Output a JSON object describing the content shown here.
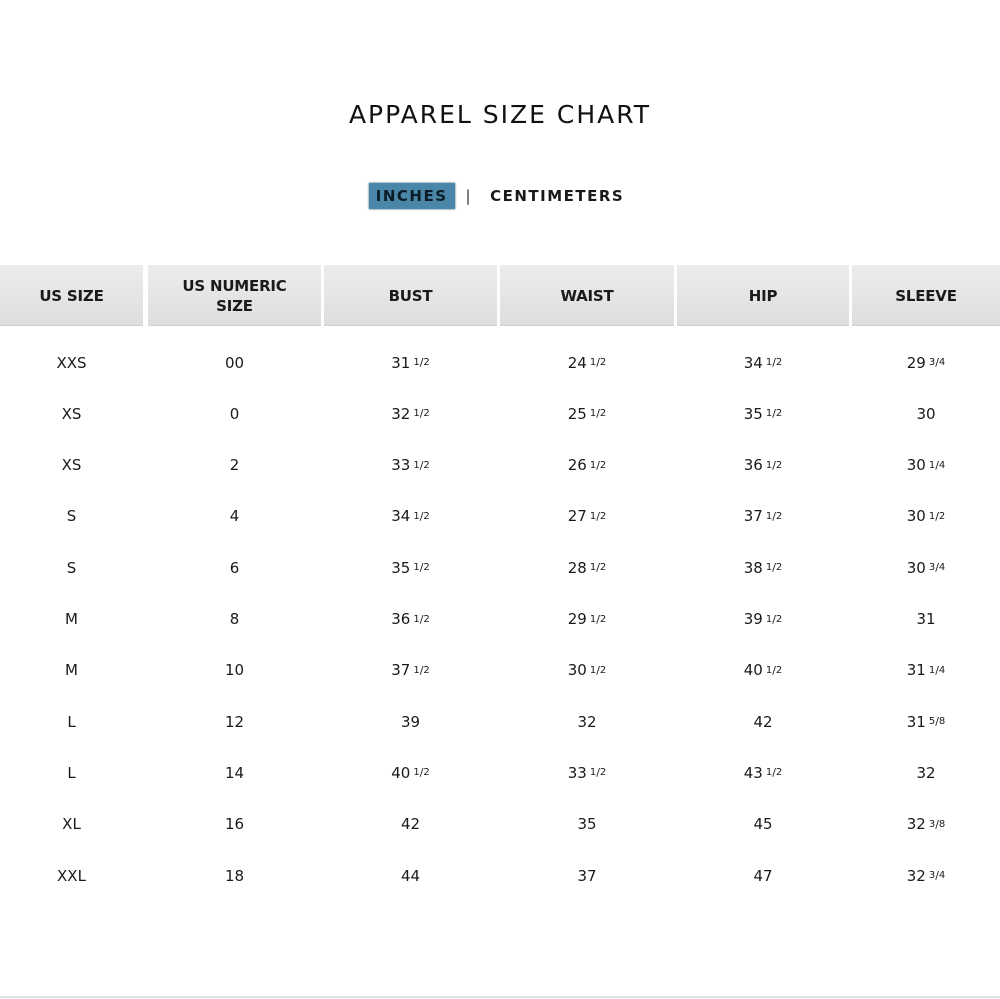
{
  "title": "APPAREL SIZE CHART",
  "units": {
    "active": "INCHES",
    "separator": "|",
    "inactive": "CENTIMETERS"
  },
  "columns": [
    {
      "key": "us_size",
      "label_lines": [
        "US SIZE"
      ]
    },
    {
      "key": "us_numeric",
      "label_lines": [
        "US NUMERIC",
        "SIZE"
      ]
    },
    {
      "key": "bust",
      "label_lines": [
        "BUST"
      ]
    },
    {
      "key": "waist",
      "label_lines": [
        "WAIST"
      ]
    },
    {
      "key": "hip",
      "label_lines": [
        "HIP"
      ]
    },
    {
      "key": "sleeve",
      "label_lines": [
        "SLEEVE"
      ]
    }
  ],
  "rows": [
    [
      "XXS",
      "00",
      "31 1/2",
      "24 1/2",
      "34 1/2",
      "29 3/4"
    ],
    [
      "XS",
      "0",
      "32 1/2",
      "25 1/2",
      "35 1/2",
      "30"
    ],
    [
      "XS",
      "2",
      "33 1/2",
      "26 1/2",
      "36 1/2",
      "30 1/4"
    ],
    [
      "S",
      "4",
      "34 1/2",
      "27 1/2",
      "37 1/2",
      "30 1/2"
    ],
    [
      "S",
      "6",
      "35 1/2",
      "28 1/2",
      "38 1/2",
      "30 3/4"
    ],
    [
      "M",
      "8",
      "36 1/2",
      "29 1/2",
      "39 1/2",
      "31"
    ],
    [
      "M",
      "10",
      "37 1/2",
      "30 1/2",
      "40 1/2",
      "31 1/4"
    ],
    [
      "L",
      "12",
      "39",
      "32",
      "42",
      "31 5/8"
    ],
    [
      "L",
      "14",
      "40 1/2",
      "33 1/2",
      "43 1/2",
      "32"
    ],
    [
      "XL",
      "16",
      "42",
      "35",
      "45",
      "32 3/8"
    ],
    [
      "XXL",
      "18",
      "44",
      "37",
      "47",
      "32 3/4"
    ]
  ],
  "colors": {
    "active_unit_bg": "#4a86a8",
    "header_bg": "#e4e4e4"
  }
}
